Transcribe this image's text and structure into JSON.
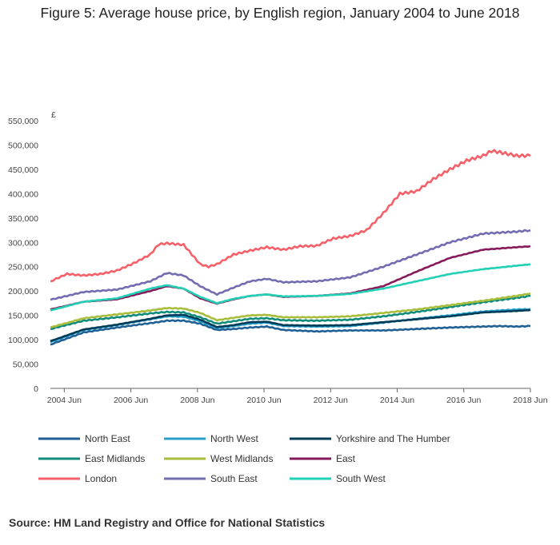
{
  "chart_data": {
    "type": "line",
    "title": "Figure 5: Average house price, by English region, January 2004 to June 2018",
    "ylabel": "£",
    "ylim": [
      0,
      550000
    ],
    "yticks": [
      0,
      50000,
      100000,
      150000,
      200000,
      250000,
      300000,
      350000,
      400000,
      450000,
      500000,
      550000
    ],
    "ytick_labels": [
      "0",
      "50,000",
      "100,000",
      "150,000",
      "200,000",
      "250,000",
      "300,000",
      "350,000",
      "400,000",
      "450,000",
      "500,000",
      "550,000"
    ],
    "xlim": [
      2004.0,
      2018.417
    ],
    "xticks": [
      2004.417,
      2006.417,
      2008.417,
      2010.417,
      2012.417,
      2014.417,
      2016.417,
      2018.417
    ],
    "xtick_labels": [
      "2004 Jun",
      "2006 Jun",
      "2008 Jun",
      "2010 Jun",
      "2012 Jun",
      "2014 Jun",
      "2016 Jun",
      "2018 Jun"
    ],
    "grid": false,
    "legend_position": "bottom",
    "series": [
      {
        "name": "North East",
        "color": "#206095",
        "x": [
          2004.0,
          2005.0,
          2006.0,
          2007.0,
          2007.5,
          2008.0,
          2008.5,
          2009.0,
          2009.5,
          2010.0,
          2010.5,
          2011.0,
          2012.0,
          2013.0,
          2014.0,
          2015.0,
          2016.0,
          2017.0,
          2017.5,
          2018.0,
          2018.417
        ],
        "y": [
          90000,
          115000,
          125000,
          134000,
          139000,
          139000,
          133000,
          120000,
          122000,
          125000,
          127000,
          120000,
          117000,
          119000,
          119000,
          122000,
          125000,
          127000,
          128000,
          127000,
          128000
        ]
      },
      {
        "name": "North West",
        "color": "#27a0cc",
        "x": [
          2004.0,
          2005.0,
          2006.0,
          2007.0,
          2007.5,
          2008.0,
          2008.5,
          2009.0,
          2009.5,
          2010.0,
          2010.5,
          2011.0,
          2012.0,
          2013.0,
          2014.0,
          2015.0,
          2016.0,
          2017.0,
          2018.0,
          2018.417
        ],
        "y": [
          95000,
          120000,
          130000,
          142000,
          148000,
          147000,
          138000,
          124000,
          128000,
          133000,
          135000,
          128000,
          127000,
          128000,
          135000,
          143000,
          150000,
          158000,
          162000,
          163000
        ]
      },
      {
        "name": "Yorkshire and The Humber",
        "color": "#003c57",
        "x": [
          2004.0,
          2005.0,
          2006.0,
          2007.0,
          2007.5,
          2008.0,
          2008.5,
          2009.0,
          2009.5,
          2010.0,
          2010.5,
          2011.0,
          2012.0,
          2013.0,
          2014.0,
          2015.0,
          2016.0,
          2017.0,
          2018.0,
          2018.417
        ],
        "y": [
          97000,
          121000,
          131000,
          143000,
          150000,
          151000,
          141000,
          126000,
          130000,
          136000,
          137000,
          130000,
          129000,
          130000,
          136000,
          142000,
          148000,
          156000,
          159000,
          161000
        ]
      },
      {
        "name": "East Midlands",
        "color": "#118c7b",
        "x": [
          2004.0,
          2005.0,
          2006.0,
          2007.0,
          2007.5,
          2008.0,
          2008.5,
          2009.0,
          2009.5,
          2010.0,
          2010.5,
          2011.0,
          2012.0,
          2013.0,
          2014.0,
          2015.0,
          2016.0,
          2017.0,
          2018.0,
          2018.417
        ],
        "y": [
          122000,
          139000,
          146000,
          154000,
          157000,
          156000,
          146000,
          133000,
          138000,
          143000,
          144000,
          140000,
          139000,
          141000,
          148000,
          157000,
          167000,
          177000,
          186000,
          190000
        ]
      },
      {
        "name": "West Midlands",
        "color": "#a8bd3a",
        "x": [
          2004.0,
          2005.0,
          2006.0,
          2007.0,
          2007.5,
          2008.0,
          2008.5,
          2009.0,
          2009.5,
          2010.0,
          2010.5,
          2011.0,
          2012.0,
          2013.0,
          2014.0,
          2015.0,
          2016.0,
          2017.0,
          2018.0,
          2018.417
        ],
        "y": [
          125000,
          144000,
          152000,
          160000,
          165000,
          164000,
          155000,
          140000,
          145000,
          150000,
          151000,
          146000,
          146000,
          148000,
          155000,
          162000,
          171000,
          180000,
          190000,
          195000
        ]
      },
      {
        "name": "East",
        "color": "#871a5b",
        "x": [
          2004.0,
          2005.0,
          2006.0,
          2007.0,
          2007.5,
          2008.0,
          2008.5,
          2009.0,
          2009.5,
          2010.0,
          2010.5,
          2011.0,
          2012.0,
          2013.0,
          2014.0,
          2015.0,
          2016.0,
          2017.0,
          2018.0,
          2018.417
        ],
        "y": [
          162000,
          178000,
          183000,
          200000,
          210000,
          205000,
          185000,
          174000,
          183000,
          190000,
          193000,
          188000,
          190000,
          195000,
          210000,
          240000,
          268000,
          285000,
          290000,
          292000
        ]
      },
      {
        "name": "London",
        "color": "#f66068",
        "x": [
          2004.0,
          2004.5,
          2005.0,
          2005.5,
          2006.0,
          2006.5,
          2007.0,
          2007.25,
          2007.5,
          2008.0,
          2008.5,
          2008.75,
          2009.0,
          2009.5,
          2010.0,
          2010.5,
          2011.0,
          2011.5,
          2012.0,
          2012.5,
          2013.0,
          2013.5,
          2014.0,
          2014.5,
          2015.0,
          2015.5,
          2016.0,
          2016.5,
          2017.0,
          2017.25,
          2017.5,
          2018.0,
          2018.417
        ],
        "y": [
          220000,
          235000,
          232000,
          235000,
          242000,
          257000,
          275000,
          296000,
          298000,
          295000,
          255000,
          250000,
          255000,
          275000,
          283000,
          290000,
          285000,
          292000,
          293000,
          308000,
          313000,
          325000,
          360000,
          400000,
          405000,
          430000,
          450000,
          468000,
          478000,
          488000,
          485000,
          478000,
          478000
        ]
      },
      {
        "name": "South East",
        "color": "#746cb1",
        "x": [
          2004.0,
          2005.0,
          2006.0,
          2007.0,
          2007.5,
          2008.0,
          2008.5,
          2009.0,
          2009.5,
          2010.0,
          2010.5,
          2011.0,
          2012.0,
          2013.0,
          2014.0,
          2015.0,
          2016.0,
          2017.0,
          2018.0,
          2018.417
        ],
        "y": [
          182000,
          198000,
          203000,
          220000,
          237000,
          232000,
          210000,
          193000,
          207000,
          220000,
          225000,
          218000,
          220000,
          228000,
          250000,
          275000,
          300000,
          318000,
          322000,
          325000
        ]
      },
      {
        "name": "South West",
        "color": "#22d0b6",
        "x": [
          2004.0,
          2005.0,
          2006.0,
          2007.0,
          2007.5,
          2008.0,
          2008.5,
          2009.0,
          2009.5,
          2010.0,
          2010.5,
          2011.0,
          2012.0,
          2013.0,
          2014.0,
          2015.0,
          2016.0,
          2017.0,
          2018.0,
          2018.417
        ],
        "y": [
          160000,
          178000,
          185000,
          205000,
          212000,
          205000,
          188000,
          175000,
          184000,
          190000,
          193000,
          189000,
          190000,
          194000,
          205000,
          220000,
          235000,
          245000,
          252000,
          255000
        ]
      }
    ]
  },
  "source": "Source: HM Land Registry and Office for National Statistics"
}
